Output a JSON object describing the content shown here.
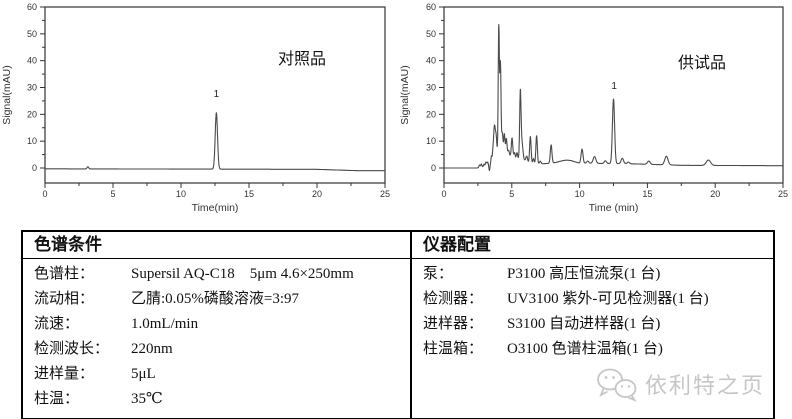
{
  "colors": {
    "curve": "#4a4a4a",
    "axis": "#333333",
    "tick_text": "#333333",
    "annotation": "#222222",
    "table_border": "#000000",
    "watermark": "#c6c6c6"
  },
  "chart_data": [
    {
      "type": "line",
      "name": "reference-chromatogram",
      "sample_label": "对照品",
      "xlabel": "Time(min)",
      "ylabel": "Signal(mAU)",
      "xlim": [
        0,
        25
      ],
      "ylim": [
        -5.6,
        60
      ],
      "x_ticks": [
        0,
        5,
        10,
        15,
        20,
        25
      ],
      "x_minor_ticks": [
        2.5,
        7.5,
        12.5,
        17.5,
        22.5
      ],
      "y_ticks": [
        0,
        10,
        20,
        30,
        40,
        50,
        60
      ],
      "y_minor_ticks": [
        5,
        15,
        25,
        35,
        45,
        55
      ],
      "grid": false,
      "legend": null,
      "peak_label": {
        "text": "1",
        "x": 12.6,
        "y": 26.5
      },
      "baseline": [
        [
          0,
          -0.3
        ],
        [
          20,
          -0.5
        ],
        [
          23,
          -1.0
        ],
        [
          25,
          -1.0
        ]
      ],
      "peaks": [
        {
          "x": 3.15,
          "h": 0.8,
          "w": 0.06
        },
        {
          "x": 12.6,
          "h": 21.0,
          "w": 0.085
        }
      ]
    },
    {
      "type": "line",
      "name": "test-chromatogram",
      "sample_label": "供试品",
      "xlabel": "Time (min)",
      "ylabel": "Signal(mAU)",
      "xlim": [
        0,
        25
      ],
      "ylim": [
        -5.6,
        60
      ],
      "x_ticks": [
        0,
        5,
        10,
        15,
        20,
        25
      ],
      "x_minor_ticks": [
        2.5,
        7.5,
        12.5,
        17.5,
        22.5
      ],
      "y_ticks": [
        0,
        10,
        20,
        30,
        40,
        50,
        60
      ],
      "y_minor_ticks": [
        5,
        15,
        25,
        35,
        45,
        55
      ],
      "grid": false,
      "legend": null,
      "peak_label": {
        "text": "1",
        "x": 12.55,
        "y": 29.5
      },
      "baseline": [
        [
          0,
          0
        ],
        [
          2.45,
          0
        ],
        [
          2.6,
          0.3
        ],
        [
          3.3,
          0.5
        ],
        [
          4,
          1.0
        ],
        [
          7,
          1.5
        ],
        [
          8.6,
          2.0
        ],
        [
          9.4,
          2.2
        ],
        [
          10,
          1.8
        ],
        [
          13.6,
          1.6
        ],
        [
          17.5,
          1.0
        ],
        [
          25,
          0.85
        ]
      ],
      "peaks": [
        {
          "x": 2.62,
          "h": 0.8,
          "w": 0.04
        },
        {
          "x": 2.75,
          "h": 1.1,
          "w": 0.04
        },
        {
          "x": 2.95,
          "h": 0.9,
          "w": 0.04
        },
        {
          "x": 3.1,
          "h": 1.5,
          "w": 0.05
        },
        {
          "x": 3.22,
          "h": 1.2,
          "w": 0.04
        },
        {
          "x": 3.35,
          "h": -2.2,
          "w": 0.035
        },
        {
          "x": 3.5,
          "h": 2.5,
          "w": 0.035
        },
        {
          "x": 3.6,
          "h": 2.0,
          "w": 0.035
        },
        {
          "x": 3.72,
          "h": 12.5,
          "w": 0.07
        },
        {
          "x": 3.85,
          "h": 6.0,
          "w": 0.05
        },
        {
          "x": 4.04,
          "h": 47.0,
          "w": 0.042
        },
        {
          "x": 4.16,
          "h": 33.0,
          "w": 0.045
        },
        {
          "x": 4.3,
          "h": 6.5,
          "w": 0.045
        },
        {
          "x": 4.45,
          "h": 6.3,
          "w": 0.045
        },
        {
          "x": 4.6,
          "h": 5.0,
          "w": 0.045
        },
        {
          "x": 4.77,
          "h": 1.5,
          "w": 0.05
        },
        {
          "x": 5.02,
          "h": 7.5,
          "w": 0.055
        },
        {
          "x": 5.2,
          "h": 2.5,
          "w": 0.05
        },
        {
          "x": 5.38,
          "h": 2.5,
          "w": 0.05
        },
        {
          "x": 5.63,
          "h": 24.5,
          "w": 0.05
        },
        {
          "x": 5.75,
          "h": 6.0,
          "w": 0.07
        },
        {
          "x": 6.1,
          "h": 2.0,
          "w": 0.06
        },
        {
          "x": 6.37,
          "h": 10.0,
          "w": 0.055
        },
        {
          "x": 6.6,
          "h": 2.0,
          "w": 0.05
        },
        {
          "x": 6.83,
          "h": 10.5,
          "w": 0.055
        },
        {
          "x": 7.1,
          "h": 1.0,
          "w": 0.06
        },
        {
          "x": 7.9,
          "h": 6.8,
          "w": 0.06
        },
        {
          "x": 10.18,
          "h": 5.2,
          "w": 0.07
        },
        {
          "x": 10.6,
          "h": 0.8,
          "w": 0.08
        },
        {
          "x": 11.1,
          "h": 2.5,
          "w": 0.1
        },
        {
          "x": 11.9,
          "h": 1.0,
          "w": 0.08
        },
        {
          "x": 12.5,
          "h": 24.0,
          "w": 0.08
        },
        {
          "x": 13.15,
          "h": 2.0,
          "w": 0.09
        },
        {
          "x": 13.6,
          "h": 0.6,
          "w": 0.08
        },
        {
          "x": 15.1,
          "h": 1.2,
          "w": 0.1
        },
        {
          "x": 16.4,
          "h": 3.2,
          "w": 0.12
        },
        {
          "x": 19.5,
          "h": 2.0,
          "w": 0.16
        },
        {
          "x": 4.35,
          "h": 5.5,
          "w": 0.5
        },
        {
          "x": 5.7,
          "h": 2.0,
          "w": 0.35
        },
        {
          "x": 9.0,
          "h": 0.8,
          "w": 0.45
        }
      ]
    }
  ],
  "tables": {
    "conditions": {
      "header": "色谱条件",
      "rows": [
        {
          "label": "色谱柱：",
          "value": "Supersil AQ-C18　5μm 4.6×250mm"
        },
        {
          "label": "流动相：",
          "value": "乙腈:0.05%磷酸溶液=3:97"
        },
        {
          "label": "流速：",
          "value": "1.0mL/min"
        },
        {
          "label": "检测波长：",
          "value": "220nm"
        },
        {
          "label": "进样量：",
          "value": "5μL"
        },
        {
          "label": "柱温：",
          "value": "35℃"
        }
      ]
    },
    "instruments": {
      "header": "仪器配置",
      "rows": [
        {
          "label": "泵：",
          "value": "P3100 高压恒流泵(1 台)"
        },
        {
          "label": "检测器：",
          "value": "UV3100 紫外-可见检测器(1 台)"
        },
        {
          "label": "进样器：",
          "value": "S3100 自动进样器(1 台)"
        },
        {
          "label": "柱温箱：",
          "value": "O3100 色谱柱温箱(1 台)"
        }
      ]
    }
  },
  "watermark": {
    "text": "依利特之页",
    "icon": "wechat-icon"
  }
}
